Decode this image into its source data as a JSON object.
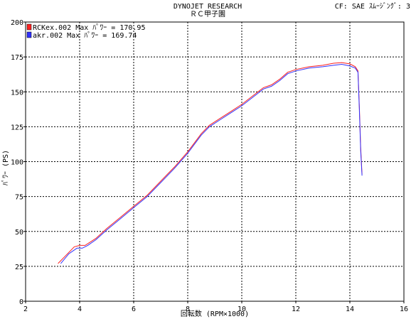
{
  "header": {
    "title": "DYNOJET  RESEARCH",
    "subtitle": "ＲＣ甲子園",
    "correction": "CF: SAE  ｽﾑｰｼﾞﾝｸﾞ: 3"
  },
  "chart_data": {
    "type": "line",
    "xlabel": "回転数 (RPM×1000)",
    "ylabel": "ﾊﾟﾜｰ (PS)",
    "xlim": [
      2,
      16
    ],
    "ylim": [
      0,
      200
    ],
    "xticks": [
      2,
      4,
      6,
      8,
      10,
      12,
      14,
      16
    ],
    "yticks": [
      0,
      25,
      50,
      75,
      100,
      125,
      150,
      175,
      200
    ],
    "grid": true,
    "legend_position": "top-left",
    "series": [
      {
        "name": "RCKex.002 Max ﾊﾟﾜｰ = 170.95",
        "color": "#ff2020",
        "x": [
          3.2,
          3.5,
          3.8,
          4.0,
          4.2,
          4.6,
          5.0,
          5.5,
          6.0,
          6.5,
          7.0,
          7.5,
          8.0,
          8.5,
          8.8,
          9.2,
          9.6,
          10.0,
          10.4,
          10.8,
          11.1,
          11.4,
          11.7,
          12.0,
          12.5,
          13.0,
          13.4,
          13.7,
          14.0,
          14.2,
          14.3,
          14.35,
          14.4,
          14.45
        ],
        "y": [
          27,
          33,
          39,
          40,
          40,
          45,
          52,
          60,
          68,
          76,
          86,
          96,
          107,
          120,
          126,
          131,
          136,
          141,
          147,
          153,
          155,
          159,
          164,
          166,
          168,
          169,
          170.5,
          170.95,
          170,
          168,
          165,
          140,
          110,
          91
        ]
      },
      {
        "name": "akr.002 Max ﾊﾟﾜｰ = 169.74",
        "color": "#3030ff",
        "x": [
          3.3,
          3.6,
          3.9,
          4.1,
          4.3,
          4.6,
          5.0,
          5.5,
          6.0,
          6.5,
          7.0,
          7.5,
          8.0,
          8.5,
          8.8,
          9.2,
          9.6,
          10.0,
          10.4,
          10.8,
          11.1,
          11.4,
          11.7,
          12.0,
          12.5,
          13.0,
          13.4,
          13.7,
          14.0,
          14.2,
          14.3,
          14.35,
          14.4,
          14.45
        ],
        "y": [
          27,
          34,
          38,
          38,
          40,
          44,
          51,
          59,
          67,
          75,
          85,
          95,
          106,
          119,
          125,
          130,
          135,
          140,
          146,
          152,
          154,
          158,
          163,
          165,
          167,
          168,
          169,
          169.74,
          168.5,
          167,
          164,
          138,
          108,
          90
        ]
      }
    ]
  }
}
